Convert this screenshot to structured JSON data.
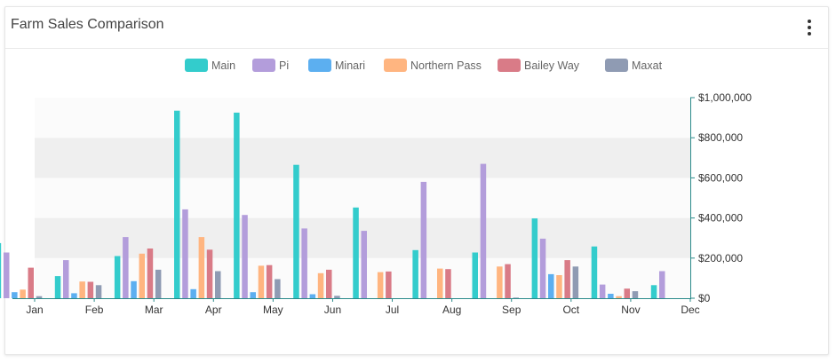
{
  "card": {
    "title": "Farm Sales Comparison",
    "menu_icon": "more-vertical-icon"
  },
  "chart_data": {
    "type": "bar",
    "categories": [
      "Jan",
      "Feb",
      "Mar",
      "Apr",
      "May",
      "Jun",
      "Jul",
      "Aug",
      "Sep",
      "Oct",
      "Nov",
      "Dec"
    ],
    "series": [
      {
        "name": "Main",
        "color": "#33cccc",
        "values": [
          275000,
          110000,
          210000,
          935000,
          925000,
          665000,
          452000,
          240000,
          228000,
          398000,
          258000,
          65000
        ]
      },
      {
        "name": "Pi",
        "color": "#b39ddb",
        "values": [
          228000,
          190000,
          305000,
          443000,
          415000,
          348000,
          336000,
          580000,
          670000,
          297000,
          68000,
          135000
        ]
      },
      {
        "name": "Minari",
        "color": "#5caff0",
        "values": [
          30000,
          25000,
          85000,
          45000,
          30000,
          20000,
          0,
          0,
          0,
          120000,
          22000,
          0
        ]
      },
      {
        "name": "Northern Pass",
        "color": "#ffb580",
        "values": [
          43000,
          83000,
          222000,
          305000,
          162000,
          125000,
          130000,
          148000,
          158000,
          115000,
          10000,
          0
        ]
      },
      {
        "name": "Bailey Way",
        "color": "#d97b87",
        "values": [
          152000,
          82000,
          248000,
          242000,
          165000,
          142000,
          133000,
          145000,
          170000,
          190000,
          48000,
          0
        ]
      },
      {
        "name": "Maxat",
        "color": "#8f9bb3",
        "values": [
          10000,
          65000,
          142000,
          135000,
          95000,
          12000,
          0,
          0,
          3000,
          158000,
          35000,
          0
        ]
      }
    ],
    "yaxis": {
      "position": "right",
      "min": 0,
      "max": 1000000,
      "tick_labels": [
        "$0",
        "$200,000",
        "$400,000",
        "$600,000",
        "$800,000",
        "$1,000,000"
      ]
    },
    "legend_position": "top-center",
    "grid": "alternating-bands"
  }
}
